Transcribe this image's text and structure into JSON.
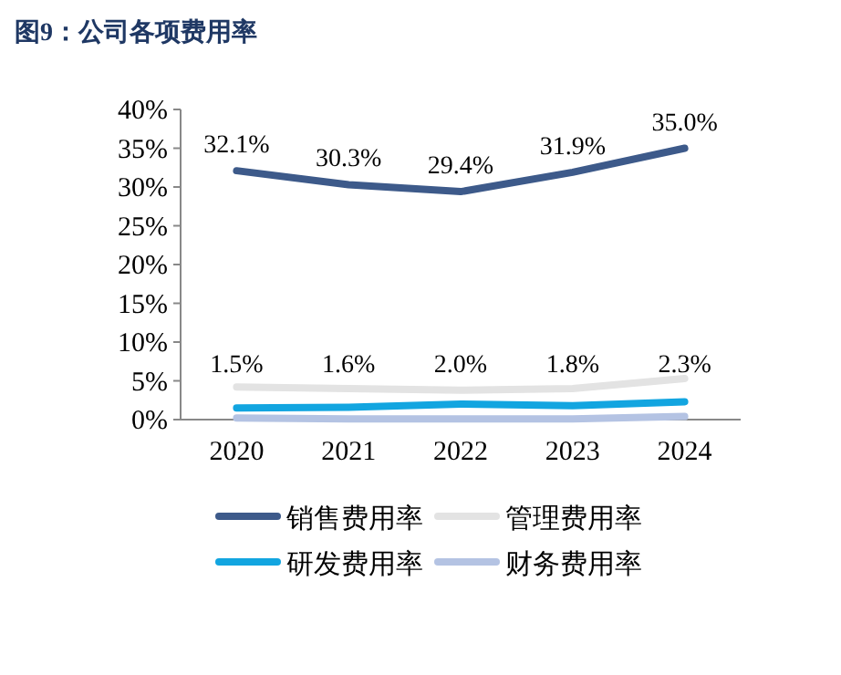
{
  "chart_data": {
    "type": "line",
    "title": "图9：公司各项费用率",
    "categories": [
      "2020",
      "2021",
      "2022",
      "2023",
      "2024"
    ],
    "ylim": [
      0,
      40
    ],
    "yticks": [
      {
        "value": 0,
        "label": "0%"
      },
      {
        "value": 5,
        "label": "5%"
      },
      {
        "value": 10,
        "label": "10%"
      },
      {
        "value": 15,
        "label": "15%"
      },
      {
        "value": 20,
        "label": "20%"
      },
      {
        "value": 25,
        "label": "25%"
      },
      {
        "value": 30,
        "label": "30%"
      },
      {
        "value": 35,
        "label": "35%"
      },
      {
        "value": 40,
        "label": "40%"
      }
    ],
    "legend": "bottom",
    "grid": false,
    "marker": "none",
    "line_style": "solid",
    "series": [
      {
        "name": "销售费用率",
        "color": "#3d5a8a",
        "values": [
          32.1,
          30.3,
          29.4,
          31.9,
          35.0
        ],
        "value_labels": [
          "32.1%",
          "30.3%",
          "29.4%",
          "31.9%",
          "35.0%"
        ]
      },
      {
        "name": "管理费用率",
        "color": "#e3e3e3",
        "values": [
          4.2,
          4.0,
          3.8,
          4.0,
          5.3
        ]
      },
      {
        "name": "研发费用率",
        "color": "#12a5e0",
        "values": [
          1.5,
          1.6,
          2.0,
          1.8,
          2.3
        ],
        "value_labels": [
          "1.5%",
          "1.6%",
          "2.0%",
          "1.8%",
          "2.3%"
        ]
      },
      {
        "name": "财务费用率",
        "color": "#b4c3e3",
        "values": [
          0.2,
          0.1,
          0.1,
          0.1,
          0.4
        ]
      }
    ]
  }
}
